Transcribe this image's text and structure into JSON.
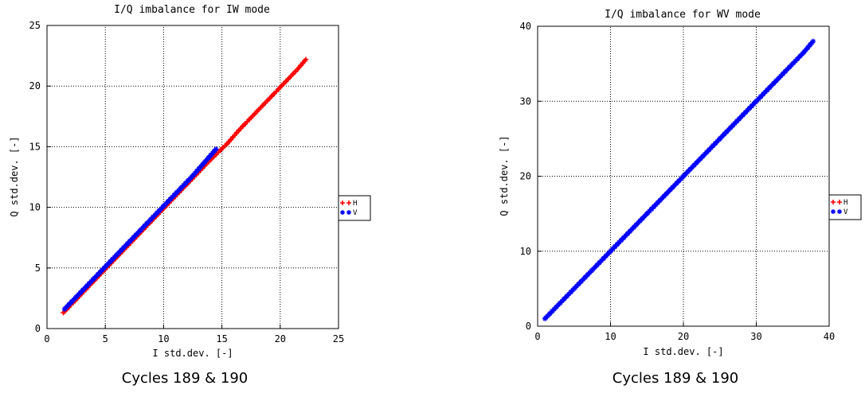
{
  "chart_data": [
    {
      "type": "scatter",
      "title": "I/Q imbalance for IW mode",
      "xlabel": "I std.dev. [-]",
      "ylabel": "Q std.dev. [-]",
      "xlim": [
        0,
        25
      ],
      "ylim": [
        0,
        25
      ],
      "xticks": [
        "0",
        "5",
        "10",
        "15",
        "20",
        "25"
      ],
      "yticks": [
        "0",
        "5",
        "10",
        "15",
        "20",
        "25"
      ],
      "grid": true,
      "legend": "right-outside",
      "series": [
        {
          "name": "H",
          "color": "#ff0000",
          "marker": "+",
          "x": [
            1.4,
            2.5,
            4,
            6,
            8,
            10,
            12,
            14,
            15.5,
            16.5,
            17.5,
            18.2,
            19,
            20,
            20.8,
            21.5,
            22.2
          ],
          "y": [
            1.3,
            2.4,
            3.9,
            5.9,
            7.9,
            9.9,
            11.9,
            13.9,
            15.3,
            16.4,
            17.4,
            18.1,
            18.9,
            19.9,
            20.7,
            21.4,
            22.2
          ]
        },
        {
          "name": "V",
          "color": "#0000ff",
          "marker": "*",
          "x": [
            1.5,
            2.5,
            4,
            6,
            8,
            10,
            11.5,
            12.5,
            13.5,
            14.5
          ],
          "y": [
            1.6,
            2.6,
            4.1,
            6.1,
            8.1,
            10.1,
            11.6,
            12.6,
            13.7,
            14.8
          ]
        }
      ],
      "caption": "Cycles 189 & 190"
    },
    {
      "type": "scatter",
      "title": "I/Q imbalance for WV mode",
      "xlabel": "I std.dev. [-]",
      "ylabel": "Q std.dev. [-]",
      "xlim": [
        0,
        40
      ],
      "ylim": [
        0,
        40
      ],
      "xticks": [
        "0",
        "10",
        "20",
        "30",
        "40"
      ],
      "yticks": [
        "0",
        "10",
        "20",
        "30",
        "40"
      ],
      "grid": true,
      "legend": "right-outside",
      "series": [
        {
          "name": "H",
          "color": "#ff0000",
          "marker": "+",
          "x": [],
          "y": []
        },
        {
          "name": "V",
          "color": "#0000ff",
          "marker": "*",
          "x": [
            1,
            3,
            5,
            7.5,
            10,
            15,
            20,
            25,
            30,
            33,
            35,
            36.5,
            37.8
          ],
          "y": [
            1,
            3,
            5,
            7.5,
            10,
            15,
            20,
            25,
            30,
            33,
            35,
            36.5,
            38
          ]
        }
      ],
      "caption": "Cycles 189 & 190"
    }
  ]
}
